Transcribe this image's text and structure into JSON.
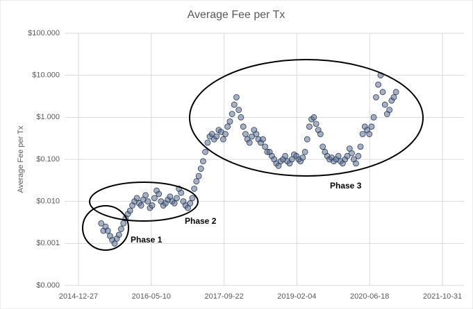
{
  "chart_data": {
    "type": "scatter",
    "title": "Average Fee per Tx",
    "y_label": "Average Fee per Tx",
    "log_y": true,
    "grid": true,
    "color": "#5b6f92",
    "xlim": [
      "2014-12-27",
      "2021-10-31"
    ],
    "xticks": [
      "2014-12-27",
      "2016-05-10",
      "2017-09-22",
      "2019-02-04",
      "2020-06-18",
      "2021-10-31"
    ],
    "ylim": [
      0.0001,
      100
    ],
    "yticks": [
      {
        "value": 0.0001,
        "label": "$0.000"
      },
      {
        "value": 0.001,
        "label": "$0.001"
      },
      {
        "value": 0.01,
        "label": "$0.010"
      },
      {
        "value": 0.1,
        "label": "$0.100"
      },
      {
        "value": 1,
        "label": "$1.000"
      },
      {
        "value": 10,
        "label": "$10.000"
      },
      {
        "value": 100,
        "label": "$100.000"
      }
    ],
    "annotations": [
      "Phase 1",
      "Phase 2",
      "Phase 3"
    ],
    "x": [
      "2015-06-01",
      "2015-06-16",
      "2015-07-01",
      "2015-07-16",
      "2015-08-01",
      "2015-08-16",
      "2015-09-01",
      "2015-09-16",
      "2015-10-01",
      "2015-10-16",
      "2015-11-01",
      "2015-11-16",
      "2015-12-01",
      "2015-12-16",
      "2016-01-01",
      "2016-01-16",
      "2016-02-01",
      "2016-02-16",
      "2016-03-01",
      "2016-03-16",
      "2016-04-01",
      "2016-04-16",
      "2016-05-01",
      "2016-05-16",
      "2016-06-01",
      "2016-06-16",
      "2016-07-01",
      "2016-07-16",
      "2016-08-01",
      "2016-08-16",
      "2016-09-01",
      "2016-09-16",
      "2016-10-01",
      "2016-10-16",
      "2016-11-01",
      "2016-11-16",
      "2016-12-01",
      "2016-12-16",
      "2017-01-01",
      "2017-01-16",
      "2017-02-01",
      "2017-02-16",
      "2017-03-01",
      "2017-03-16",
      "2017-04-01",
      "2017-04-16",
      "2017-05-01",
      "2017-05-16",
      "2017-06-01",
      "2017-06-16",
      "2017-07-01",
      "2017-07-16",
      "2017-08-01",
      "2017-08-16",
      "2017-09-01",
      "2017-09-16",
      "2017-10-01",
      "2017-10-16",
      "2017-11-01",
      "2017-11-16",
      "2017-12-01",
      "2017-12-16",
      "2018-01-01",
      "2018-01-16",
      "2018-02-01",
      "2018-02-16",
      "2018-03-01",
      "2018-03-16",
      "2018-04-01",
      "2018-04-16",
      "2018-05-01",
      "2018-05-16",
      "2018-06-01",
      "2018-06-16",
      "2018-07-01",
      "2018-07-16",
      "2018-08-01",
      "2018-08-16",
      "2018-09-01",
      "2018-09-16",
      "2018-10-01",
      "2018-10-16",
      "2018-11-01",
      "2018-11-16",
      "2018-12-01",
      "2018-12-16",
      "2019-01-01",
      "2019-01-16",
      "2019-02-01",
      "2019-02-16",
      "2019-03-01",
      "2019-03-16",
      "2019-04-01",
      "2019-04-16",
      "2019-05-01",
      "2019-05-16",
      "2019-06-01",
      "2019-06-16",
      "2019-07-01",
      "2019-07-16",
      "2019-08-01",
      "2019-08-16",
      "2019-09-01",
      "2019-09-16",
      "2019-10-01",
      "2019-10-16",
      "2019-11-01",
      "2019-11-16",
      "2019-12-01",
      "2019-12-16",
      "2020-01-01",
      "2020-01-16",
      "2020-02-01",
      "2020-02-16",
      "2020-03-01",
      "2020-03-16",
      "2020-04-01",
      "2020-04-16",
      "2020-05-01",
      "2020-05-16",
      "2020-06-01",
      "2020-06-16",
      "2020-07-01",
      "2020-07-16",
      "2020-08-01",
      "2020-08-16",
      "2020-09-01",
      "2020-09-16",
      "2020-10-01",
      "2020-10-16",
      "2020-11-01",
      "2020-11-16",
      "2020-12-01",
      "2020-12-16"
    ],
    "values": [
      0.003,
      0.002,
      0.0025,
      0.002,
      0.0015,
      0.0012,
      0.001,
      0.0013,
      0.0016,
      0.0022,
      0.003,
      0.004,
      0.005,
      0.006,
      0.008,
      0.01,
      0.012,
      0.009,
      0.008,
      0.011,
      0.014,
      0.01,
      0.007,
      0.008,
      0.012,
      0.018,
      0.015,
      0.01,
      0.008,
      0.009,
      0.011,
      0.013,
      0.01,
      0.009,
      0.012,
      0.02,
      0.016,
      0.01,
      0.008,
      0.007,
      0.009,
      0.012,
      0.02,
      0.03,
      0.04,
      0.06,
      0.09,
      0.15,
      0.25,
      0.35,
      0.4,
      0.3,
      0.35,
      0.5,
      0.45,
      0.3,
      0.4,
      0.6,
      0.8,
      1.2,
      2,
      3,
      1.5,
      1,
      0.6,
      0.4,
      0.3,
      0.25,
      0.35,
      0.5,
      0.4,
      0.3,
      0.25,
      0.3,
      0.2,
      0.15,
      0.15,
      0.12,
      0.1,
      0.08,
      0.07,
      0.09,
      0.1,
      0.12,
      0.09,
      0.08,
      0.1,
      0.13,
      0.12,
      0.1,
      0.09,
      0.11,
      0.15,
      0.3,
      0.6,
      0.9,
      1,
      0.7,
      0.5,
      0.4,
      0.2,
      0.15,
      0.12,
      0.1,
      0.11,
      0.09,
      0.1,
      0.12,
      0.09,
      0.08,
      0.1,
      0.12,
      0.18,
      0.14,
      0.1,
      0.08,
      0.12,
      0.2,
      0.4,
      0.6,
      0.5,
      0.4,
      0.6,
      1,
      3,
      6,
      10,
      4,
      2,
      1.2,
      1.5,
      2.5,
      3,
      4
    ]
  }
}
